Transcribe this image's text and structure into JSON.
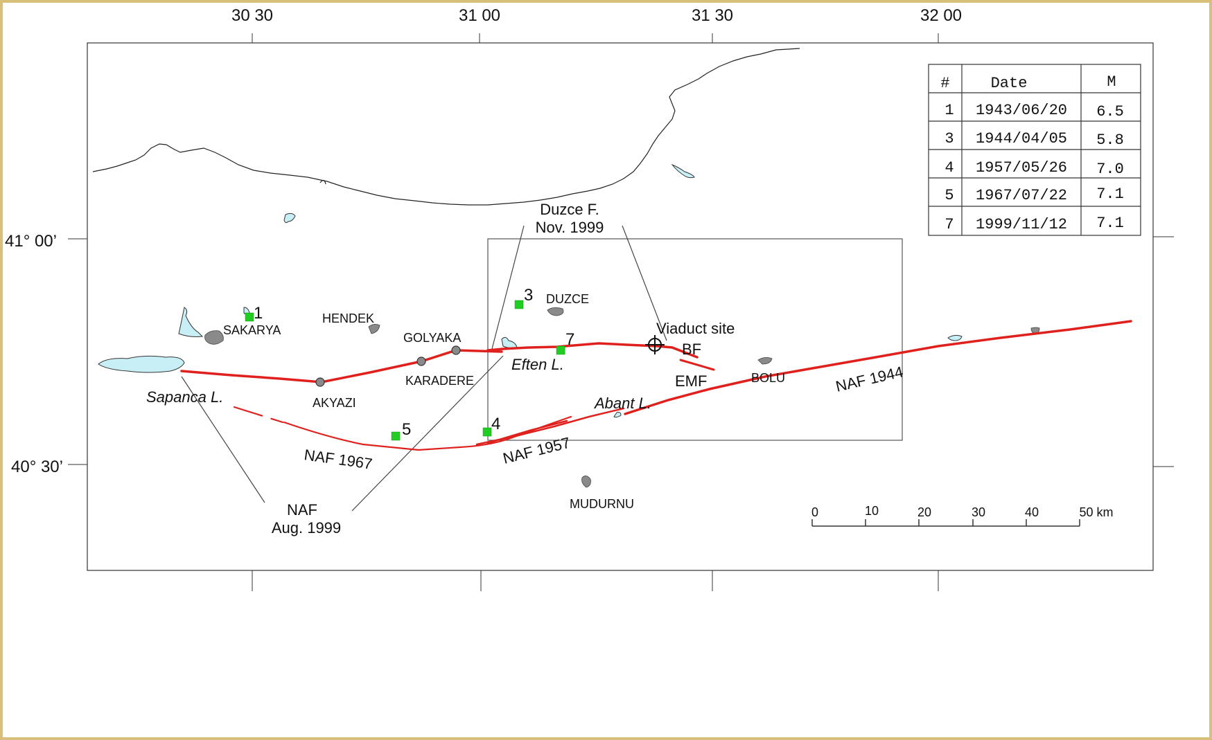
{
  "axes": {
    "top_ticks": [
      "30 30",
      "31 00",
      "31 30",
      "32 00"
    ],
    "left_ticks": [
      "41° 00’",
      "40° 30’"
    ]
  },
  "towns": [
    "SAKARYA",
    "HENDEK",
    "GOLYAKA",
    "KARADERE",
    "AKYAZI",
    "DUZCE",
    "BOLU",
    "MUDURNU"
  ],
  "lakes": [
    "Sapanca L.",
    "Eften L.",
    "Abant L."
  ],
  "faults": {
    "naf_1967": "NAF 1967",
    "naf_1957": "NAF 1957",
    "naf_1944": "NAF 1944",
    "bf": "BF",
    "emf": "EMF"
  },
  "callouts": {
    "duzce_fault": [
      "Duzce F.",
      "Nov. 1999"
    ],
    "naf_1999": [
      "NAF",
      "Aug. 1999"
    ],
    "viaduct": "Viaduct site"
  },
  "epicenters": [
    "1",
    "3",
    "4",
    "5",
    "7"
  ],
  "quake_table": {
    "headers": [
      "#",
      "Date",
      "M"
    ],
    "rows": [
      [
        "1",
        "1943/06/20",
        "6.5"
      ],
      [
        "3",
        "1944/04/05",
        "5.8"
      ],
      [
        "4",
        "1957/05/26",
        "7.0"
      ],
      [
        "5",
        "1967/07/22",
        "7.1"
      ],
      [
        "7",
        "1999/11/12",
        "7.1"
      ]
    ]
  },
  "scale_bar": {
    "ticks": [
      "0",
      "10",
      "20",
      "30",
      "40",
      "50 km"
    ]
  },
  "colors": {
    "fault": "#e0201c",
    "epicenter": "#22cc22",
    "lake": "#c8eef6",
    "town": "#8a8a8a",
    "background": "#d8c07a"
  }
}
